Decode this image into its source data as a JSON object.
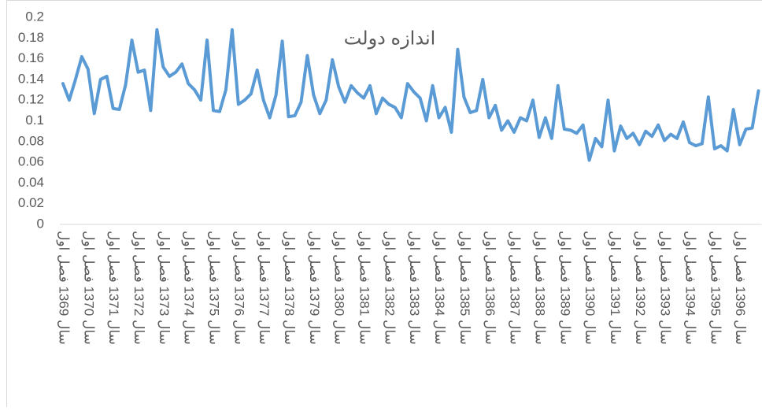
{
  "chart_data": {
    "type": "line",
    "title": "اندازه دولت",
    "categories": [
      "سال 1369 فصل اول",
      null,
      null,
      null,
      "سال 1370 فصل اول",
      null,
      null,
      null,
      "سال 1371 فصل اول",
      null,
      null,
      null,
      "سال 1372 فصل اول",
      null,
      null,
      null,
      "سال 1373 فصل اول",
      null,
      null,
      null,
      "سال 1374 فصل اول",
      null,
      null,
      null,
      "سال 1375 فصل اول",
      null,
      null,
      null,
      "سال 1376 فصل اول",
      null,
      null,
      null,
      "سال 1377 فصل اول",
      null,
      null,
      null,
      "سال 1378 فصل اول",
      null,
      null,
      null,
      "سال 1379 فصل اول",
      null,
      null,
      null,
      "سال 1380 فصل اول",
      null,
      null,
      null,
      "سال 1381 فصل اول",
      null,
      null,
      null,
      "سال 1382 فصل اول",
      null,
      null,
      null,
      "سال 1383 فصل اول",
      null,
      null,
      null,
      "سال 1384 فصل اول",
      null,
      null,
      null,
      "سال 1385 فصل اول",
      null,
      null,
      null,
      "سال 1386 فصل اول",
      null,
      null,
      null,
      "سال 1387 فصل اول",
      null,
      null,
      null,
      "سال 1388 فصل اول",
      null,
      null,
      null,
      "سال 1389 فصل اول",
      null,
      null,
      null,
      "سال 1390 فصل اول",
      null,
      null,
      null,
      "سال 1391 فصل اول",
      null,
      null,
      null,
      "سال 1392 فصل اول",
      null,
      null,
      null,
      "سال 1393 فصل اول",
      null,
      null,
      null,
      "سال 1394 فصل اول",
      null,
      null,
      null,
      "سال 1395 فصل اول",
      null,
      null,
      null,
      "سال 1396 فصل اول",
      null,
      null,
      null
    ],
    "values": [
      0.136,
      0.12,
      0.14,
      0.162,
      0.15,
      0.107,
      0.14,
      0.143,
      0.112,
      0.111,
      0.135,
      0.178,
      0.147,
      0.149,
      0.11,
      0.188,
      0.152,
      0.143,
      0.147,
      0.155,
      0.136,
      0.13,
      0.12,
      0.178,
      0.11,
      0.109,
      0.13,
      0.188,
      0.116,
      0.12,
      0.126,
      0.149,
      0.12,
      0.103,
      0.125,
      0.177,
      0.104,
      0.105,
      0.118,
      0.163,
      0.125,
      0.107,
      0.12,
      0.159,
      0.133,
      0.118,
      0.134,
      0.127,
      0.122,
      0.134,
      0.107,
      0.122,
      0.116,
      0.113,
      0.103,
      0.136,
      0.128,
      0.122,
      0.1,
      0.134,
      0.103,
      0.113,
      0.089,
      0.169,
      0.123,
      0.108,
      0.11,
      0.14,
      0.103,
      0.115,
      0.091,
      0.1,
      0.089,
      0.103,
      0.1,
      0.12,
      0.084,
      0.103,
      0.083,
      0.134,
      0.092,
      0.091,
      0.088,
      0.096,
      0.062,
      0.083,
      0.075,
      0.12,
      0.071,
      0.095,
      0.083,
      0.088,
      0.077,
      0.09,
      0.085,
      0.096,
      0.081,
      0.087,
      0.083,
      0.099,
      0.079,
      0.076,
      0.078,
      0.123,
      0.073,
      0.076,
      0.071,
      0.111,
      0.077,
      0.092,
      0.093,
      0.129
    ],
    "color": "#5b9bd5",
    "ylim": [
      0,
      0.2
    ],
    "yticks": [
      0,
      0.02,
      0.04,
      0.06,
      0.08,
      0.1,
      0.12,
      0.14,
      0.16,
      0.18,
      0.2
    ],
    "grid": false
  }
}
